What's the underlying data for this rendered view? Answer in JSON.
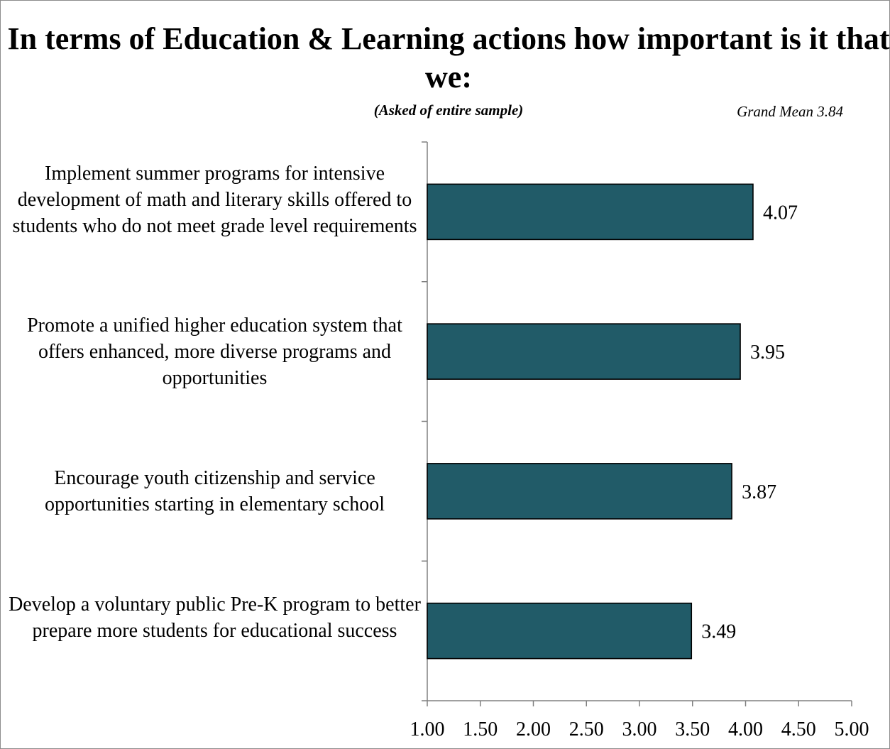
{
  "chart_data": {
    "type": "bar",
    "orientation": "horizontal",
    "title": "In terms of Education & Learning actions how important is it that we:",
    "subtitle": "(Asked of entire sample)",
    "annotation": "Grand Mean 3.84",
    "categories": [
      "Implement summer programs for intensive development of math and literary skills offered to students who do not meet grade level requirements",
      "Promote a unified higher education system that offers enhanced, more diverse programs and opportunities",
      "Encourage youth citizenship and service opportunities starting in elementary school",
      "Develop a voluntary public Pre-K program to better prepare more students for educational success"
    ],
    "values": [
      4.07,
      3.95,
      3.87,
      3.49
    ],
    "value_labels": [
      "4.07",
      "3.95",
      "3.87",
      "3.49"
    ],
    "xlim": [
      1.0,
      5.0
    ],
    "x_ticks": [
      "1.00",
      "1.50",
      "2.00",
      "2.50",
      "3.00",
      "3.50",
      "4.00",
      "4.50",
      "5.00"
    ],
    "grid": false,
    "legend": "none",
    "bar_color": "#215b68"
  }
}
